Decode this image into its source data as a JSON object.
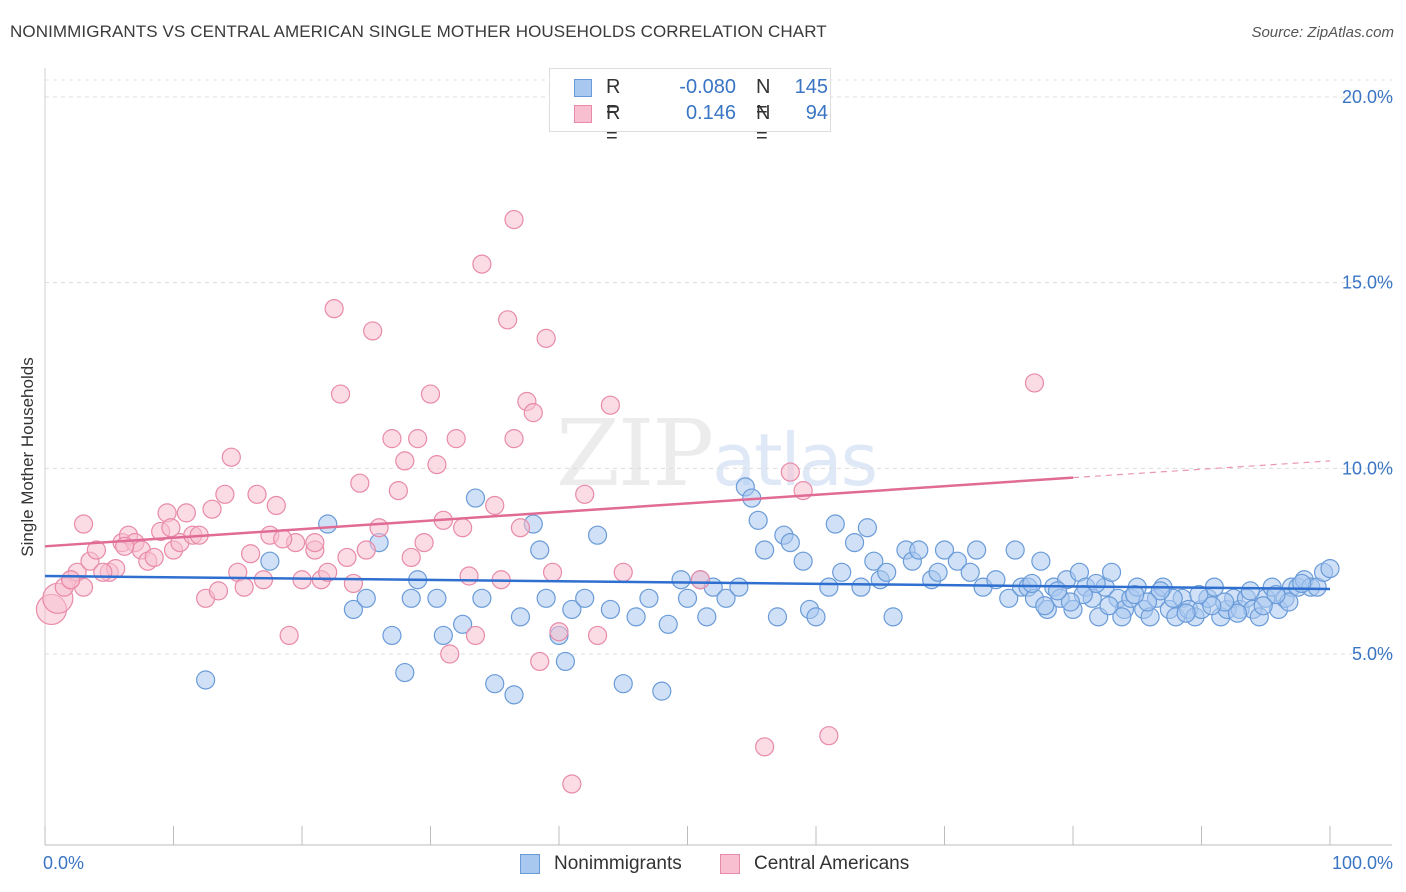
{
  "header": {
    "title": "NONIMMIGRANTS VS CENTRAL AMERICAN SINGLE MOTHER HOUSEHOLDS CORRELATION CHART",
    "source": "Source: ZipAtlas.com"
  },
  "watermark": {
    "zip": "ZIP",
    "atlas": "atlas"
  },
  "legend": {
    "r_label": "R =",
    "n_label": "N =",
    "rows": [
      {
        "r": "-0.080",
        "n": "145",
        "color": "#a9c8f0",
        "border": "#6a9bd8"
      },
      {
        "r": "0.146",
        "n": "94",
        "color": "#f7bfd0",
        "border": "#e88aa8"
      }
    ]
  },
  "chart_data": {
    "type": "scatter",
    "title": "NONIMMIGRANTS VS CENTRAL AMERICAN SINGLE MOTHER HOUSEHOLDS CORRELATION CHART",
    "xlabel": "",
    "ylabel": "Single Mother Households",
    "xlim": [
      0,
      100
    ],
    "ylim": [
      0,
      20.5
    ],
    "x_tick_labels": [
      "0.0%",
      "100.0%"
    ],
    "y_ticks": [
      5,
      10,
      15,
      20
    ],
    "y_tick_labels": [
      "5.0%",
      "10.0%",
      "15.0%",
      "20.0%"
    ],
    "grid": true,
    "legend_position": "top-center",
    "series": [
      {
        "name": "Nonimmigrants",
        "color": "#6a9bd8",
        "fill": "#a9c8f0",
        "trend": {
          "x": [
            0,
            100
          ],
          "y": [
            7.1,
            6.75
          ],
          "color": "#2f6fcf"
        },
        "points": [
          [
            12.5,
            4.3
          ],
          [
            17.5,
            7.5
          ],
          [
            22,
            8.5
          ],
          [
            24,
            6.2
          ],
          [
            26,
            8.0
          ],
          [
            25,
            6.5
          ],
          [
            27,
            5.5
          ],
          [
            28,
            4.5
          ],
          [
            28.5,
            6.5
          ],
          [
            29,
            7.0
          ],
          [
            30.5,
            6.5
          ],
          [
            31,
            5.5
          ],
          [
            32.5,
            5.8
          ],
          [
            33.5,
            9.2
          ],
          [
            34,
            6.5
          ],
          [
            35,
            4.2
          ],
          [
            36.5,
            3.9
          ],
          [
            37,
            6.0
          ],
          [
            38,
            8.5
          ],
          [
            38.5,
            7.8
          ],
          [
            39,
            6.5
          ],
          [
            40,
            5.5
          ],
          [
            40.5,
            4.8
          ],
          [
            41,
            6.2
          ],
          [
            42,
            6.5
          ],
          [
            43,
            8.2
          ],
          [
            44,
            6.2
          ],
          [
            45,
            4.2
          ],
          [
            46,
            6.0
          ],
          [
            47,
            6.5
          ],
          [
            48,
            4.0
          ],
          [
            48.5,
            5.8
          ],
          [
            49.5,
            7.0
          ],
          [
            50,
            6.5
          ],
          [
            51,
            7.0
          ],
          [
            51.5,
            6.0
          ],
          [
            52,
            6.8
          ],
          [
            53,
            6.5
          ],
          [
            54,
            6.8
          ],
          [
            54.5,
            9.5
          ],
          [
            55,
            9.2
          ],
          [
            55.5,
            8.6
          ],
          [
            56,
            7.8
          ],
          [
            57,
            6.0
          ],
          [
            57.5,
            8.2
          ],
          [
            58,
            8.0
          ],
          [
            59,
            7.5
          ],
          [
            59.5,
            6.2
          ],
          [
            60,
            6.0
          ],
          [
            61,
            6.8
          ],
          [
            61.5,
            8.5
          ],
          [
            62,
            7.2
          ],
          [
            63,
            8.0
          ],
          [
            63.5,
            6.8
          ],
          [
            64,
            8.4
          ],
          [
            64.5,
            7.5
          ],
          [
            65,
            7.0
          ],
          [
            65.5,
            7.2
          ],
          [
            66,
            6.0
          ],
          [
            67,
            7.8
          ],
          [
            67.5,
            7.5
          ],
          [
            68,
            7.8
          ],
          [
            69,
            7.0
          ],
          [
            69.5,
            7.2
          ],
          [
            70,
            7.8
          ],
          [
            71,
            7.5
          ],
          [
            72,
            7.2
          ],
          [
            72.5,
            7.8
          ],
          [
            73,
            6.8
          ],
          [
            74,
            7.0
          ],
          [
            75,
            6.5
          ],
          [
            75.5,
            7.8
          ],
          [
            76,
            6.8
          ],
          [
            76.5,
            6.8
          ],
          [
            77,
            6.5
          ],
          [
            77.5,
            7.5
          ],
          [
            78,
            6.2
          ],
          [
            78.5,
            6.8
          ],
          [
            79,
            6.5
          ],
          [
            79.5,
            7.0
          ],
          [
            80,
            6.2
          ],
          [
            80.5,
            7.2
          ],
          [
            81,
            6.8
          ],
          [
            81.5,
            6.5
          ],
          [
            82,
            6.0
          ],
          [
            82.5,
            6.8
          ],
          [
            83,
            7.2
          ],
          [
            83.5,
            6.5
          ],
          [
            84,
            6.2
          ],
          [
            84.5,
            6.5
          ],
          [
            85,
            6.8
          ],
          [
            85.5,
            6.2
          ],
          [
            86,
            6.0
          ],
          [
            86.5,
            6.5
          ],
          [
            87,
            6.8
          ],
          [
            87.5,
            6.2
          ],
          [
            88,
            6.0
          ],
          [
            88.5,
            6.5
          ],
          [
            89,
            6.2
          ],
          [
            89.5,
            6.0
          ],
          [
            90,
            6.2
          ],
          [
            90.5,
            6.5
          ],
          [
            91,
            6.8
          ],
          [
            91.5,
            6.0
          ],
          [
            92,
            6.2
          ],
          [
            92.5,
            6.5
          ],
          [
            93,
            6.2
          ],
          [
            93.5,
            6.5
          ],
          [
            94,
            6.2
          ],
          [
            94.5,
            6.0
          ],
          [
            95,
            6.5
          ],
          [
            95.5,
            6.8
          ],
          [
            96,
            6.2
          ],
          [
            96.5,
            6.5
          ],
          [
            97,
            6.8
          ],
          [
            97.5,
            6.8
          ],
          [
            98,
            7.0
          ],
          [
            98.5,
            6.8
          ],
          [
            99,
            6.8
          ],
          [
            99.5,
            7.2
          ],
          [
            100,
            7.3
          ],
          [
            97.8,
            6.9
          ],
          [
            96.8,
            6.4
          ],
          [
            95.8,
            6.6
          ],
          [
            94.8,
            6.3
          ],
          [
            93.8,
            6.7
          ],
          [
            92.8,
            6.1
          ],
          [
            91.8,
            6.4
          ],
          [
            90.8,
            6.3
          ],
          [
            89.8,
            6.6
          ],
          [
            88.8,
            6.1
          ],
          [
            87.8,
            6.5
          ],
          [
            86.8,
            6.7
          ],
          [
            85.8,
            6.4
          ],
          [
            84.8,
            6.6
          ],
          [
            83.8,
            6.0
          ],
          [
            82.8,
            6.3
          ],
          [
            81.8,
            6.9
          ],
          [
            80.8,
            6.6
          ],
          [
            79.8,
            6.4
          ],
          [
            78.8,
            6.7
          ],
          [
            77.8,
            6.3
          ],
          [
            76.8,
            6.9
          ]
        ]
      },
      {
        "name": "Central Americans",
        "color": "#e88aa8",
        "fill": "#f7bfd0",
        "trend": {
          "x": [
            0,
            80
          ],
          "y": [
            7.9,
            9.75
          ],
          "color": "#e06b95",
          "dash_to": [
            100,
            10.2
          ]
        },
        "points": [
          [
            0.5,
            6.2
          ],
          [
            1,
            6.5
          ],
          [
            1.5,
            6.8
          ],
          [
            2,
            7.0
          ],
          [
            2.5,
            7.2
          ],
          [
            3,
            6.8
          ],
          [
            3.5,
            7.5
          ],
          [
            4,
            7.8
          ],
          [
            5,
            7.2
          ],
          [
            5.5,
            7.3
          ],
          [
            6,
            8.0
          ],
          [
            6.5,
            8.2
          ],
          [
            7,
            8.0
          ],
          [
            7.5,
            7.8
          ],
          [
            8,
            7.5
          ],
          [
            8.5,
            7.6
          ],
          [
            9,
            8.3
          ],
          [
            9.5,
            8.8
          ],
          [
            10,
            7.8
          ],
          [
            10.5,
            8.0
          ],
          [
            11,
            8.8
          ],
          [
            11.5,
            8.2
          ],
          [
            12,
            8.2
          ],
          [
            12.5,
            6.5
          ],
          [
            13,
            8.9
          ],
          [
            14,
            9.3
          ],
          [
            14.5,
            10.3
          ],
          [
            15,
            7.2
          ],
          [
            15.5,
            6.8
          ],
          [
            16,
            7.7
          ],
          [
            16.5,
            9.3
          ],
          [
            17,
            7.0
          ],
          [
            17.5,
            8.2
          ],
          [
            18,
            9.0
          ],
          [
            19,
            5.5
          ],
          [
            19.5,
            8.0
          ],
          [
            20,
            7.0
          ],
          [
            21,
            7.8
          ],
          [
            21.5,
            7.0
          ],
          [
            22,
            7.2
          ],
          [
            22.5,
            14.3
          ],
          [
            23,
            12.0
          ],
          [
            23.5,
            7.6
          ],
          [
            24,
            6.9
          ],
          [
            24.5,
            9.6
          ],
          [
            25,
            7.8
          ],
          [
            25.5,
            13.7
          ],
          [
            26,
            8.4
          ],
          [
            27,
            10.8
          ],
          [
            27.5,
            9.4
          ],
          [
            28,
            10.2
          ],
          [
            28.5,
            7.6
          ],
          [
            29,
            10.8
          ],
          [
            29.5,
            8.0
          ],
          [
            30,
            12.0
          ],
          [
            30.5,
            10.1
          ],
          [
            31,
            8.6
          ],
          [
            31.5,
            5.0
          ],
          [
            32,
            10.8
          ],
          [
            32.5,
            8.4
          ],
          [
            33,
            7.1
          ],
          [
            33.5,
            5.5
          ],
          [
            34,
            15.5
          ],
          [
            35,
            9.0
          ],
          [
            35.5,
            7.0
          ],
          [
            36,
            14.0
          ],
          [
            36.5,
            10.8
          ],
          [
            37,
            8.4
          ],
          [
            37.5,
            11.8
          ],
          [
            38,
            11.5
          ],
          [
            38.5,
            4.8
          ],
          [
            39,
            13.5
          ],
          [
            39.5,
            7.2
          ],
          [
            40,
            5.6
          ],
          [
            41,
            1.5
          ],
          [
            42,
            9.3
          ],
          [
            43,
            5.5
          ],
          [
            44,
            11.7
          ],
          [
            45,
            7.2
          ],
          [
            51,
            7.0
          ],
          [
            56,
            2.5
          ],
          [
            58,
            9.9
          ],
          [
            59,
            9.4
          ],
          [
            61,
            2.8
          ],
          [
            77,
            12.3
          ],
          [
            3,
            8.5
          ],
          [
            2,
            7.0
          ],
          [
            4.5,
            7.2
          ],
          [
            6.2,
            7.9
          ],
          [
            9.8,
            8.4
          ],
          [
            13.5,
            6.7
          ],
          [
            18.5,
            8.1
          ],
          [
            21,
            8.0
          ],
          [
            36.5,
            16.7
          ]
        ]
      }
    ]
  },
  "bottom_legend": [
    {
      "label": "Nonimmigrants",
      "color": "#a9c8f0",
      "border": "#6a9bd8"
    },
    {
      "label": "Central Americans",
      "color": "#f7bfd0",
      "border": "#e88aa8"
    }
  ]
}
